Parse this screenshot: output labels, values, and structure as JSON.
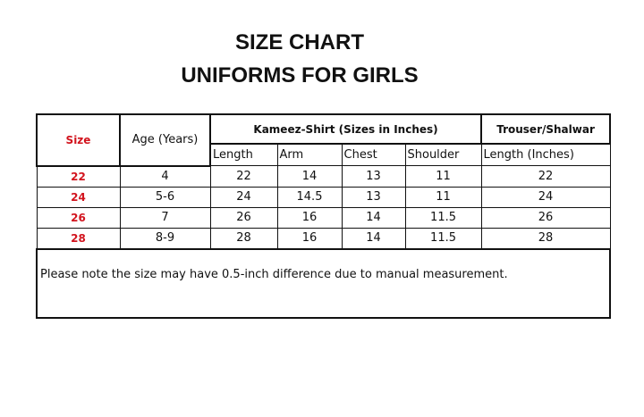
{
  "title": "SIZE CHART",
  "subtitle": "UNIFORMS FOR GIRLS",
  "table": {
    "size_header": "Size",
    "age_header": "Age (Years)",
    "kameez_header": "Kameez-Shirt (Sizes in Inches)",
    "trouser_header": "Trouser/Shalwar",
    "sub_headers": [
      "Length",
      "Arm",
      "Chest",
      "Shoulder",
      "Length (Inches)"
    ],
    "rows": [
      {
        "size": "22",
        "age": "4",
        "length": "22",
        "arm": "14",
        "chest": "13",
        "shoulder": "11",
        "trouser_length": "22"
      },
      {
        "size": "24",
        "age": "5-6",
        "length": "24",
        "arm": "14.5",
        "chest": "13",
        "shoulder": "11",
        "trouser_length": "24"
      },
      {
        "size": "26",
        "age": "7",
        "length": "26",
        "arm": "16",
        "chest": "14",
        "shoulder": "11.5",
        "trouser_length": "26"
      },
      {
        "size": "28",
        "age": "8-9",
        "length": "28",
        "arm": "16",
        "chest": "14",
        "shoulder": "11.5",
        "trouser_length": "28"
      }
    ],
    "note": "Please note the size may have 0.5-inch difference due to manual measurement.",
    "size_color": "#d2141e"
  }
}
